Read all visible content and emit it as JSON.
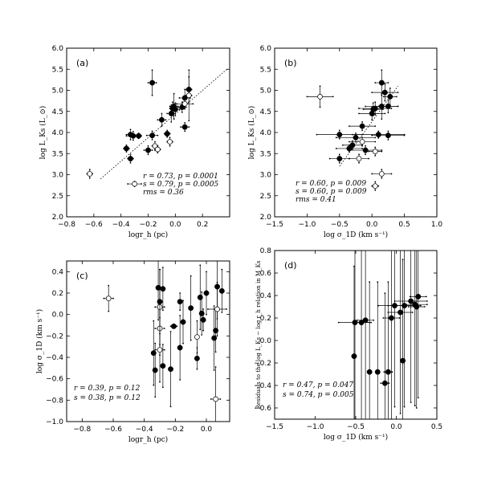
{
  "chart_data": [
    {
      "type": "scatter",
      "panel": "(a)",
      "xlabel": "logr_h (pc)",
      "ylabel": "log L_Ks (L_⊙)",
      "xlim": [
        -0.8,
        0.4
      ],
      "ylim": [
        2.0,
        6.0
      ],
      "xticks": [
        "−0.8",
        "−0.6",
        "−0.4",
        "−0.2",
        "0.0",
        "0.2"
      ],
      "yticks": [
        "2.0",
        "2.5",
        "3.0",
        "3.5",
        "4.0",
        "4.5",
        "5.0",
        "5.5",
        "6.0"
      ],
      "stats": [
        "r = 0.73, p = 0.0001",
        "s = 0.79, p = 0.0005",
        "rms = 0.36"
      ],
      "fit_line": [
        [
          -0.55,
          2.9
        ],
        [
          0.38,
          5.5
        ]
      ],
      "series": [
        {
          "kind": "filled",
          "points": [
            [
              -0.36,
              3.62,
              0.02,
              0.08
            ],
            [
              -0.33,
              3.38,
              0.02,
              0.1
            ],
            [
              -0.33,
              3.95,
              0.03,
              0.12
            ],
            [
              -0.31,
              3.92,
              0.05,
              0.1
            ],
            [
              -0.27,
              3.92,
              0.02,
              0.06
            ],
            [
              -0.2,
              3.58,
              0.03,
              0.1
            ],
            [
              -0.17,
              5.18,
              0.03,
              0.3
            ],
            [
              -0.17,
              3.93,
              0.04,
              0.1
            ],
            [
              -0.1,
              4.3,
              0.03,
              0.15
            ],
            [
              -0.06,
              3.97,
              0.02,
              0.08
            ],
            [
              -0.03,
              4.45,
              0.03,
              0.2
            ],
            [
              -0.02,
              4.57,
              0.02,
              0.15
            ],
            [
              -0.01,
              4.62,
              0.03,
              0.3
            ],
            [
              0.0,
              4.55,
              0.03,
              0.15
            ],
            [
              0.07,
              4.13,
              0.03,
              0.1
            ],
            [
              0.07,
              4.82,
              0.04,
              0.2
            ],
            [
              0.1,
              5.02,
              0.02,
              0.3
            ],
            [
              0.05,
              4.6,
              0.03,
              0.12
            ]
          ]
        },
        {
          "kind": "open",
          "points": [
            [
              -0.63,
              3.02,
              0.02,
              0.1
            ],
            [
              -0.3,
              2.78,
              0.05,
              0.06
            ],
            [
              -0.15,
              3.68,
              0.02,
              0.1
            ],
            [
              -0.04,
              3.78,
              0.02,
              0.1
            ],
            [
              0.07,
              4.68,
              0.06,
              0.12
            ],
            [
              0.1,
              4.88,
              0.02,
              0.6
            ],
            [
              -0.13,
              3.6,
              0.02,
              0.08
            ]
          ]
        }
      ]
    },
    {
      "type": "scatter",
      "panel": "(b)",
      "xlabel": "log σ_1D (km s⁻¹)",
      "ylabel": "log L_Ks (L_⊙)",
      "xlim": [
        -1.5,
        1.0
      ],
      "ylim": [
        2.0,
        6.0
      ],
      "xticks": [
        "−1.5",
        "−1.0",
        "−0.5",
        "0.0",
        "0.5",
        "1.0"
      ],
      "yticks": [
        "2.0",
        "2.5",
        "3.0",
        "3.5",
        "4.0",
        "4.5",
        "5.0",
        "5.5",
        "6.0"
      ],
      "stats": [
        "r = 0.60, p = 0.009",
        "s = 0.60, p = 0.009",
        "rms = 0.41"
      ],
      "fit_line": [
        [
          -0.5,
          3.2
        ],
        [
          0.4,
          5.1
        ]
      ],
      "series": [
        {
          "kind": "filled",
          "points": [
            [
              -0.5,
              3.38,
              0.15,
              0.1
            ],
            [
              -0.5,
              3.95,
              0.35,
              0.1
            ],
            [
              -0.35,
              3.62,
              0.2,
              0.08
            ],
            [
              -0.3,
              3.7,
              0.15,
              0.1
            ],
            [
              -0.25,
              3.88,
              0.3,
              0.1
            ],
            [
              -0.15,
              4.15,
              0.2,
              0.1
            ],
            [
              -0.1,
              3.58,
              0.25,
              0.1
            ],
            [
              0.02,
              4.55,
              0.15,
              0.15
            ],
            [
              0.05,
              4.57,
              0.25,
              0.15
            ],
            [
              0.1,
              3.95,
              0.4,
              0.08
            ],
            [
              0.15,
              4.62,
              0.25,
              0.3
            ],
            [
              0.15,
              5.18,
              0.1,
              0.3
            ],
            [
              0.2,
              4.95,
              0.2,
              0.2
            ],
            [
              0.25,
              3.93,
              0.25,
              0.1
            ],
            [
              0.25,
              4.62,
              0.15,
              0.15
            ],
            [
              0.28,
              4.85,
              0.1,
              0.2
            ],
            [
              0.0,
              4.45,
              0.2,
              0.15
            ]
          ]
        },
        {
          "kind": "open",
          "points": [
            [
              -0.8,
              4.85,
              0.2,
              0.25
            ],
            [
              -0.2,
              3.38,
              0.15,
              0.1
            ],
            [
              -0.15,
              3.78,
              0.2,
              0.1
            ],
            [
              0.05,
              3.55,
              0.1,
              0.1
            ],
            [
              0.05,
              2.73,
              0.05,
              0.1
            ],
            [
              0.15,
              3.02,
              0.15,
              0.1
            ]
          ]
        }
      ]
    },
    {
      "type": "scatter",
      "panel": "(c)",
      "xlabel": "logr_h (pc)",
      "ylabel": "log σ_1D (km s⁻¹)",
      "xlim": [
        -0.9,
        0.15
      ],
      "ylim": [
        -1.0,
        0.5
      ],
      "xticks": [
        "−0.8",
        "−0.6",
        "−0.4",
        "−0.2",
        "0.0"
      ],
      "yticks": [
        "−1.0",
        "−0.8",
        "−0.6",
        "−0.4",
        "−0.2",
        "0.0",
        "0.2",
        "0.4"
      ],
      "stats": [
        "r = 0.39, p = 0.12",
        "s = 0.38, p = 0.12"
      ],
      "series": [
        {
          "kind": "filled",
          "points": [
            [
              -0.34,
              -0.36,
              0.01,
              0.3
            ],
            [
              -0.33,
              -0.52,
              0.01,
              0.25
            ],
            [
              -0.31,
              0.25,
              0.01,
              0.3
            ],
            [
              -0.3,
              0.12,
              0.01,
              0.3
            ],
            [
              -0.28,
              0.24,
              0.01,
              0.2
            ],
            [
              -0.28,
              -0.48,
              0.01,
              0.2
            ],
            [
              -0.23,
              -0.51,
              0.01,
              0.35
            ],
            [
              -0.21,
              -0.11,
              0.02,
              0.01
            ],
            [
              -0.17,
              0.12,
              0.01,
              0.08
            ],
            [
              -0.17,
              -0.31,
              0.01,
              0.3
            ],
            [
              -0.15,
              -0.07,
              0.01,
              0.2
            ],
            [
              -0.1,
              0.06,
              0.01,
              0.3
            ],
            [
              -0.06,
              -0.41,
              0.01,
              0.1
            ],
            [
              -0.04,
              0.16,
              0.01,
              0.3
            ],
            [
              -0.03,
              0.01,
              0.01,
              0.2
            ],
            [
              -0.02,
              -0.05,
              0.01,
              0.1
            ],
            [
              0.0,
              0.2,
              0.01,
              0.2
            ],
            [
              0.05,
              -0.22,
              0.01,
              0.3
            ],
            [
              0.06,
              -0.15,
              0.01,
              0.2
            ],
            [
              0.07,
              0.26,
              0.01,
              0.3
            ],
            [
              0.1,
              0.22,
              0.01,
              0.2
            ]
          ]
        },
        {
          "kind": "open",
          "points": [
            [
              -0.63,
              0.15,
              0.03,
              0.12
            ],
            [
              -0.3,
              0.07,
              0.03,
              0.35
            ],
            [
              -0.3,
              -0.13,
              0.03,
              0.25
            ],
            [
              -0.3,
              -0.33,
              0.03,
              0.3
            ],
            [
              -0.06,
              -0.21,
              0.01,
              0.15
            ],
            [
              0.06,
              -0.79,
              0.03,
              0.3
            ],
            [
              0.07,
              0.05,
              0.06,
              0.25
            ]
          ]
        }
      ]
    },
    {
      "type": "scatter",
      "panel": "(d)",
      "xlabel": "log σ_1D (km s⁻¹)",
      "ylabel": "Residuals to the log L_Ks − log r_h relation in M_Ks",
      "xlim": [
        -1.5,
        0.5
      ],
      "ylim": [
        -0.7,
        0.8
      ],
      "xticks": [
        "−1.5",
        "−1.0",
        "−0.5",
        "0.0",
        "0.5"
      ],
      "yticks": [
        "−0.6",
        "−0.4",
        "−0.2",
        "0.0",
        "0.2",
        "0.4",
        "0.6",
        "0.8"
      ],
      "stats": [
        "r = 0.47, p = 0.047",
        "s = 0.74, p = 0.005"
      ],
      "series": [
        {
          "kind": "filled",
          "points": [
            [
              -0.52,
              -0.14,
              0.02,
              0.8
            ],
            [
              -0.51,
              0.16,
              0.2,
              0.9
            ],
            [
              -0.43,
              0.16,
              0.1,
              0.9
            ],
            [
              -0.38,
              0.18,
              0.1,
              0.9
            ],
            [
              -0.33,
              -0.28,
              0.02,
              0.8
            ],
            [
              -0.23,
              -0.28,
              0.02,
              0.8
            ],
            [
              -0.14,
              -0.38,
              0.05,
              0.8
            ],
            [
              -0.1,
              -0.28,
              0.05,
              0.8
            ],
            [
              -0.06,
              0.2,
              0.1,
              0.9
            ],
            [
              -0.02,
              0.31,
              0.2,
              0.9
            ],
            [
              0.05,
              0.25,
              0.15,
              0.9
            ],
            [
              0.08,
              -0.18,
              0.02,
              0.9
            ],
            [
              0.1,
              0.31,
              0.2,
              0.9
            ],
            [
              0.18,
              0.35,
              0.2,
              0.9
            ],
            [
              0.23,
              0.32,
              0.15,
              0.9
            ],
            [
              0.25,
              0.3,
              0.1,
              0.9
            ],
            [
              0.27,
              0.39,
              0.1,
              0.9
            ]
          ]
        }
      ]
    }
  ]
}
